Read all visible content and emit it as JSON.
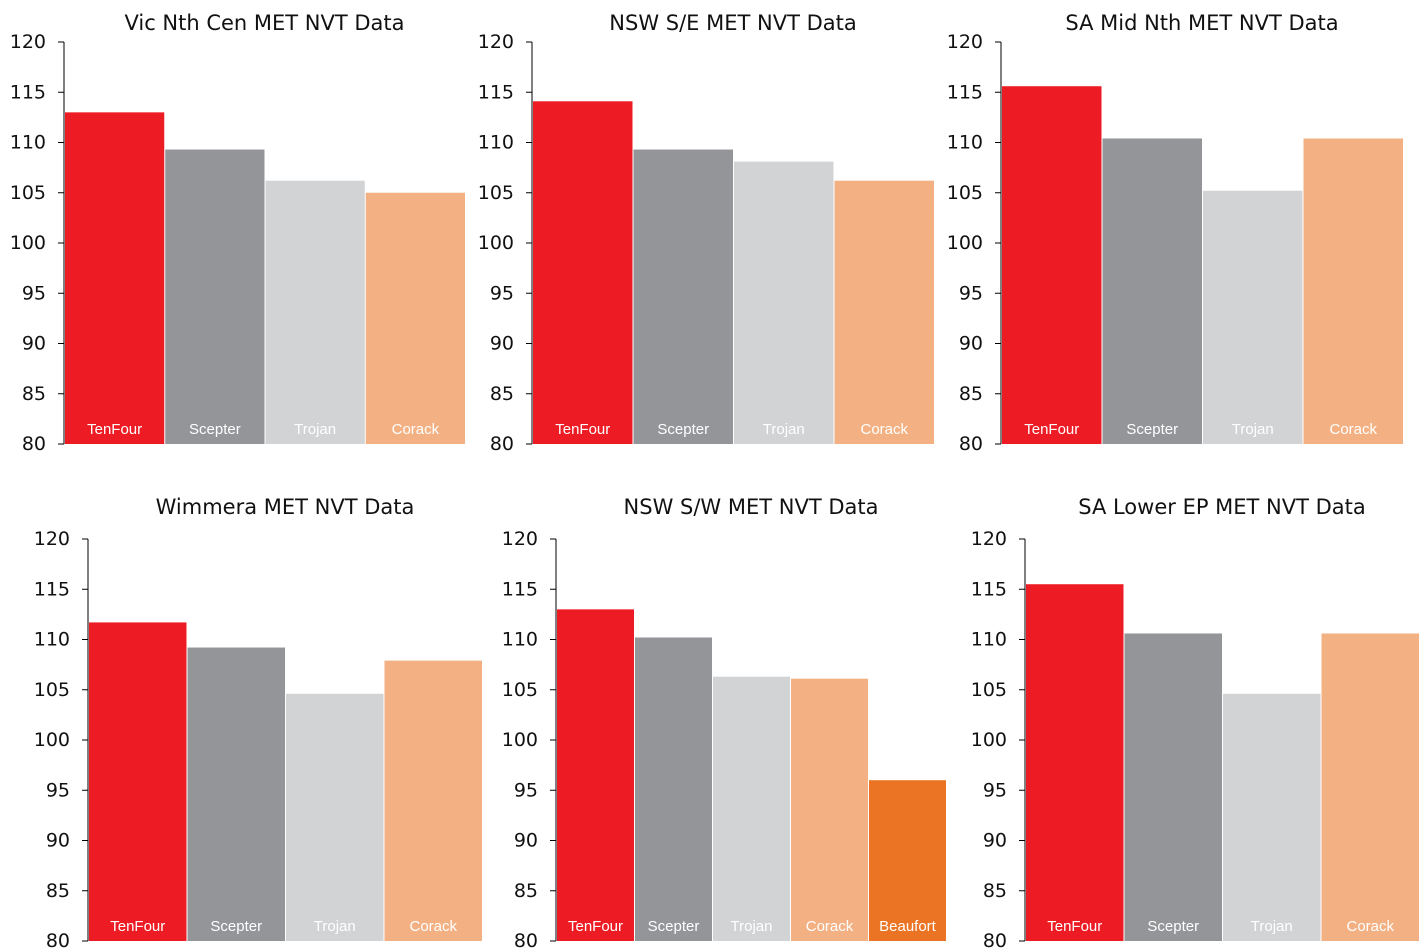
{
  "colors": {
    "TenFour": "#ed1c24",
    "Scepter": "#939598",
    "Trojan": "#d1d3d4",
    "Corack": "#f3b183",
    "Beaufort": "#ea7423",
    "axis": "#000000"
  },
  "chart_data": [
    {
      "type": "bar",
      "title": "Vic Nth Cen MET NVT Data",
      "categories": [
        "TenFour",
        "Scepter",
        "Trojan",
        "Corack"
      ],
      "values": [
        113,
        109.3,
        106.2,
        105
      ],
      "ylim": [
        80,
        120
      ],
      "yticks": [
        80,
        85,
        90,
        95,
        100,
        105,
        110,
        115,
        120
      ],
      "xlabel": "",
      "ylabel": "",
      "grid": false,
      "legend": "none"
    },
    {
      "type": "bar",
      "title": "NSW S/E MET NVT Data",
      "categories": [
        "TenFour",
        "Scepter",
        "Trojan",
        "Corack"
      ],
      "values": [
        114.1,
        109.3,
        108.1,
        106.2
      ],
      "ylim": [
        80,
        120
      ],
      "yticks": [
        80,
        85,
        90,
        95,
        100,
        105,
        110,
        115,
        120
      ],
      "xlabel": "",
      "ylabel": "",
      "grid": false,
      "legend": "none"
    },
    {
      "type": "bar",
      "title": "SA Mid Nth MET NVT Data",
      "categories": [
        "TenFour",
        "Scepter",
        "Trojan",
        "Corack"
      ],
      "values": [
        115.6,
        110.4,
        105.2,
        110.4
      ],
      "ylim": [
        80,
        120
      ],
      "yticks": [
        80,
        85,
        90,
        95,
        100,
        105,
        110,
        115,
        120
      ],
      "xlabel": "",
      "ylabel": "",
      "grid": false,
      "legend": "none"
    },
    {
      "type": "bar",
      "title": "Wimmera MET NVT Data",
      "categories": [
        "TenFour",
        "Scepter",
        "Trojan",
        "Corack"
      ],
      "values": [
        111.7,
        109.2,
        104.6,
        107.9
      ],
      "ylim": [
        80,
        120
      ],
      "yticks": [
        80,
        85,
        90,
        95,
        100,
        105,
        110,
        115,
        120
      ],
      "xlabel": "",
      "ylabel": "",
      "grid": false,
      "legend": "none"
    },
    {
      "type": "bar",
      "title": "NSW S/W MET NVT Data",
      "categories": [
        "TenFour",
        "Scepter",
        "Trojan",
        "Corack",
        "Beaufort"
      ],
      "values": [
        113,
        110.2,
        106.3,
        106.1,
        96
      ],
      "ylim": [
        80,
        120
      ],
      "yticks": [
        80,
        85,
        90,
        95,
        100,
        105,
        110,
        115,
        120
      ],
      "xlabel": "",
      "ylabel": "",
      "grid": false,
      "legend": "none"
    },
    {
      "type": "bar",
      "title": "SA Lower EP MET NVT Data",
      "categories": [
        "TenFour",
        "Scepter",
        "Trojan",
        "Corack"
      ],
      "values": [
        115.5,
        110.6,
        104.6,
        110.6
      ],
      "ylim": [
        80,
        120
      ],
      "yticks": [
        80,
        85,
        90,
        95,
        100,
        105,
        110,
        115,
        120
      ],
      "xlabel": "",
      "ylabel": "",
      "grid": false,
      "legend": "none"
    }
  ]
}
